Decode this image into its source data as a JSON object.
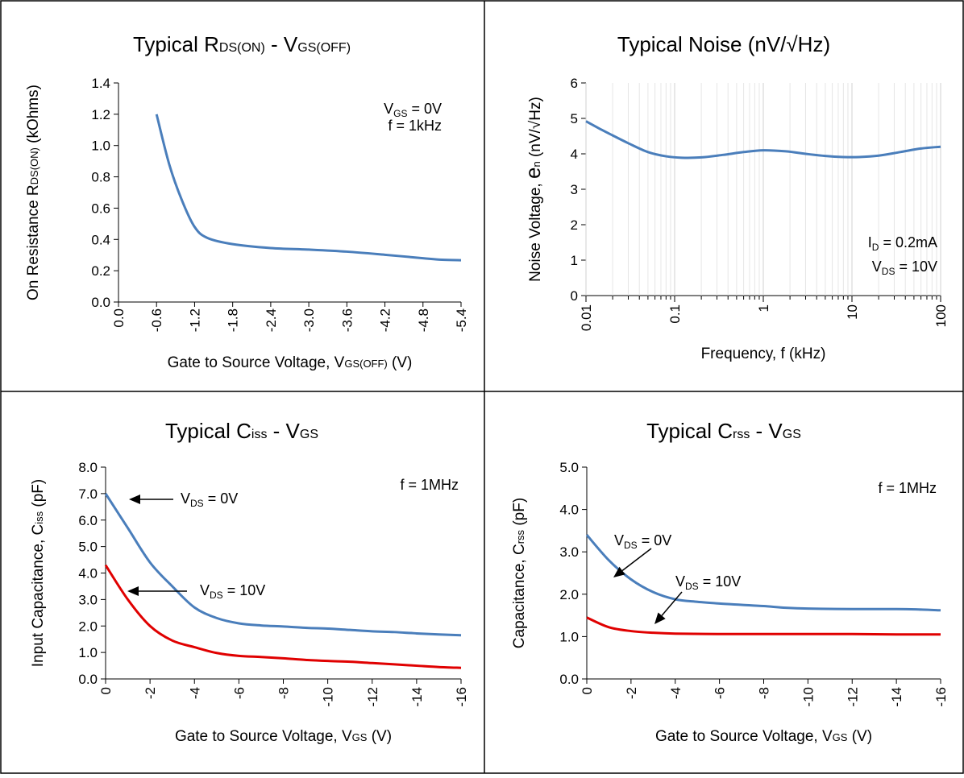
{
  "chart_data": [
    {
      "type": "line",
      "title": "Typical R",
      "title_sub1": "DS(ON)",
      "title_mid": " - V",
      "title_sub2": "GS(OFF)",
      "ylabel": "On Resistance R",
      "ylabel_sub": "DS(ON)",
      "ylabel_end": " (kOhms)",
      "xlabel": "Gate to Source Voltage, V",
      "xlabel_sub": "GS(OFF)",
      "xlabel_end": " (V)",
      "xlim": [
        0,
        -5.4
      ],
      "ylim": [
        0,
        1.4
      ],
      "x_ticks": [
        "0.0",
        "-0.6",
        "-1.2",
        "-1.8",
        "-2.4",
        "-3.0",
        "-3.6",
        "-4.2",
        "-4.8",
        "-5.4"
      ],
      "y_ticks": [
        "0.0",
        "0.2",
        "0.4",
        "0.6",
        "0.8",
        "1.0",
        "1.2",
        "1.4"
      ],
      "annotations": [
        {
          "parts": [
            {
              "t": "V"
            },
            {
              "t": "GS",
              "sub": true
            },
            {
              "t": " = 0V"
            }
          ]
        },
        {
          "parts": [
            {
              "t": "f = 1kHz"
            }
          ]
        }
      ],
      "series": [
        {
          "color": "#4a7ebb",
          "x": [
            -0.6,
            -0.8,
            -1.0,
            -1.2,
            -1.4,
            -1.8,
            -2.4,
            -3.0,
            -3.6,
            -4.2,
            -4.8,
            -5.1,
            -5.4
          ],
          "y": [
            1.2,
            0.88,
            0.65,
            0.48,
            0.41,
            0.37,
            0.345,
            0.335,
            0.322,
            0.302,
            0.28,
            0.27,
            0.267
          ]
        }
      ]
    },
    {
      "type": "line",
      "log_x": true,
      "title": "Typical Noise (nV/√Hz)",
      "ylabel": "Noise Voltage, ",
      "ylabel_big": "e",
      "ylabel_sub": "n",
      "ylabel_end": " (nV/√Hz)",
      "xlabel": "Frequency, f (kHz)",
      "xlim": [
        0.01,
        100
      ],
      "ylim": [
        0,
        6
      ],
      "x_ticks": [
        "0.01",
        "0.1",
        "1",
        "10",
        "100"
      ],
      "y_ticks": [
        "0",
        "1",
        "2",
        "3",
        "4",
        "5",
        "6"
      ],
      "annotations": [
        {
          "parts": [
            {
              "t": "I"
            },
            {
              "t": "D",
              "sub": true
            },
            {
              "t": " = 0.2mA"
            }
          ]
        },
        {
          "parts": [
            {
              "t": "V"
            },
            {
              "t": "DS",
              "sub": true
            },
            {
              "t": " = 10V"
            }
          ]
        }
      ],
      "series": [
        {
          "color": "#4a7ebb",
          "x": [
            0.01,
            0.015,
            0.02,
            0.03,
            0.05,
            0.08,
            0.12,
            0.2,
            0.35,
            0.6,
            1.0,
            1.8,
            3,
            5,
            8,
            12,
            20,
            35,
            60,
            100
          ],
          "y": [
            4.92,
            4.68,
            4.52,
            4.3,
            4.05,
            3.93,
            3.89,
            3.9,
            3.97,
            4.05,
            4.1,
            4.07,
            4.0,
            3.94,
            3.91,
            3.91,
            3.95,
            4.05,
            4.15,
            4.2
          ]
        }
      ]
    },
    {
      "type": "line",
      "title": "Typical C",
      "title_sub1": "iss",
      "title_mid": " - V",
      "title_sub2": "GS",
      "ylabel": "Input Capacitance, C",
      "ylabel_sub": "iss",
      "ylabel_end": " (pF)",
      "xlabel": "Gate to Source Voltage, V",
      "xlabel_sub": "GS",
      "xlabel_end": " (V)",
      "xlim": [
        0,
        -16
      ],
      "ylim": [
        0,
        8
      ],
      "x_ticks": [
        "0",
        "-2",
        "-4",
        "-6",
        "-8",
        "-10",
        "-12",
        "-14",
        "-16"
      ],
      "y_ticks": [
        "0.0",
        "1.0",
        "2.0",
        "3.0",
        "4.0",
        "5.0",
        "6.0",
        "7.0",
        "8.0"
      ],
      "annotations": [
        {
          "parts": [
            {
              "t": "f = 1MHz"
            }
          ]
        }
      ],
      "arrow_labels": [
        {
          "parts": [
            {
              "t": "V"
            },
            {
              "t": "DS",
              "sub": true
            },
            {
              "t": " = 0V"
            }
          ]
        },
        {
          "parts": [
            {
              "t": "V"
            },
            {
              "t": "DS",
              "sub": true
            },
            {
              "t": " = 10V"
            }
          ]
        }
      ],
      "series": [
        {
          "color": "#4a7ebb",
          "x": [
            0,
            -1,
            -2,
            -3,
            -4,
            -5,
            -6,
            -7,
            -8,
            -9,
            -10,
            -11,
            -12,
            -13,
            -14,
            -15,
            -16
          ],
          "y": [
            7.0,
            5.7,
            4.4,
            3.5,
            2.7,
            2.3,
            2.1,
            2.02,
            1.98,
            1.93,
            1.9,
            1.85,
            1.8,
            1.77,
            1.72,
            1.68,
            1.65
          ]
        },
        {
          "color": "#e00000",
          "x": [
            0,
            -1,
            -2,
            -3,
            -4,
            -5,
            -6,
            -7,
            -8,
            -9,
            -10,
            -11,
            -12,
            -13,
            -14,
            -15,
            -16
          ],
          "y": [
            4.3,
            3.0,
            2.0,
            1.45,
            1.2,
            0.98,
            0.87,
            0.83,
            0.78,
            0.72,
            0.68,
            0.65,
            0.6,
            0.55,
            0.5,
            0.45,
            0.42
          ]
        }
      ]
    },
    {
      "type": "line",
      "title": "Typical C",
      "title_sub1": "rss",
      "title_mid": " - V",
      "title_sub2": "GS",
      "ylabel": "Capacitance, C",
      "ylabel_sub": "rss",
      "ylabel_end": " (pF)",
      "xlabel": "Gate to Source Voltage, V",
      "xlabel_sub": "GS",
      "xlabel_end": " (V)",
      "xlim": [
        0,
        -16
      ],
      "ylim": [
        0,
        5
      ],
      "x_ticks": [
        "0",
        "-2",
        "-4",
        "-6",
        "-8",
        "-10",
        "-12",
        "-14",
        "-16"
      ],
      "y_ticks": [
        "0.0",
        "1.0",
        "2.0",
        "3.0",
        "4.0",
        "5.0"
      ],
      "annotations": [
        {
          "parts": [
            {
              "t": "f = 1MHz"
            }
          ]
        }
      ],
      "arrow_labels": [
        {
          "parts": [
            {
              "t": "V"
            },
            {
              "t": "DS",
              "sub": true
            },
            {
              "t": " = 0V"
            }
          ]
        },
        {
          "parts": [
            {
              "t": "V"
            },
            {
              "t": "DS",
              "sub": true
            },
            {
              "t": " = 10V"
            }
          ]
        }
      ],
      "series": [
        {
          "color": "#4a7ebb",
          "x": [
            0,
            -1,
            -2,
            -3,
            -4,
            -5,
            -6,
            -7,
            -8,
            -9,
            -10,
            -12,
            -14,
            -15,
            -16
          ],
          "y": [
            3.4,
            2.8,
            2.35,
            2.05,
            1.88,
            1.82,
            1.78,
            1.75,
            1.72,
            1.68,
            1.66,
            1.65,
            1.65,
            1.64,
            1.62
          ]
        },
        {
          "color": "#e00000",
          "x": [
            0,
            -1,
            -2,
            -3,
            -4,
            -6,
            -8,
            -10,
            -12,
            -14,
            -16
          ],
          "y": [
            1.45,
            1.22,
            1.13,
            1.09,
            1.07,
            1.06,
            1.06,
            1.06,
            1.06,
            1.05,
            1.05
          ]
        }
      ]
    }
  ]
}
